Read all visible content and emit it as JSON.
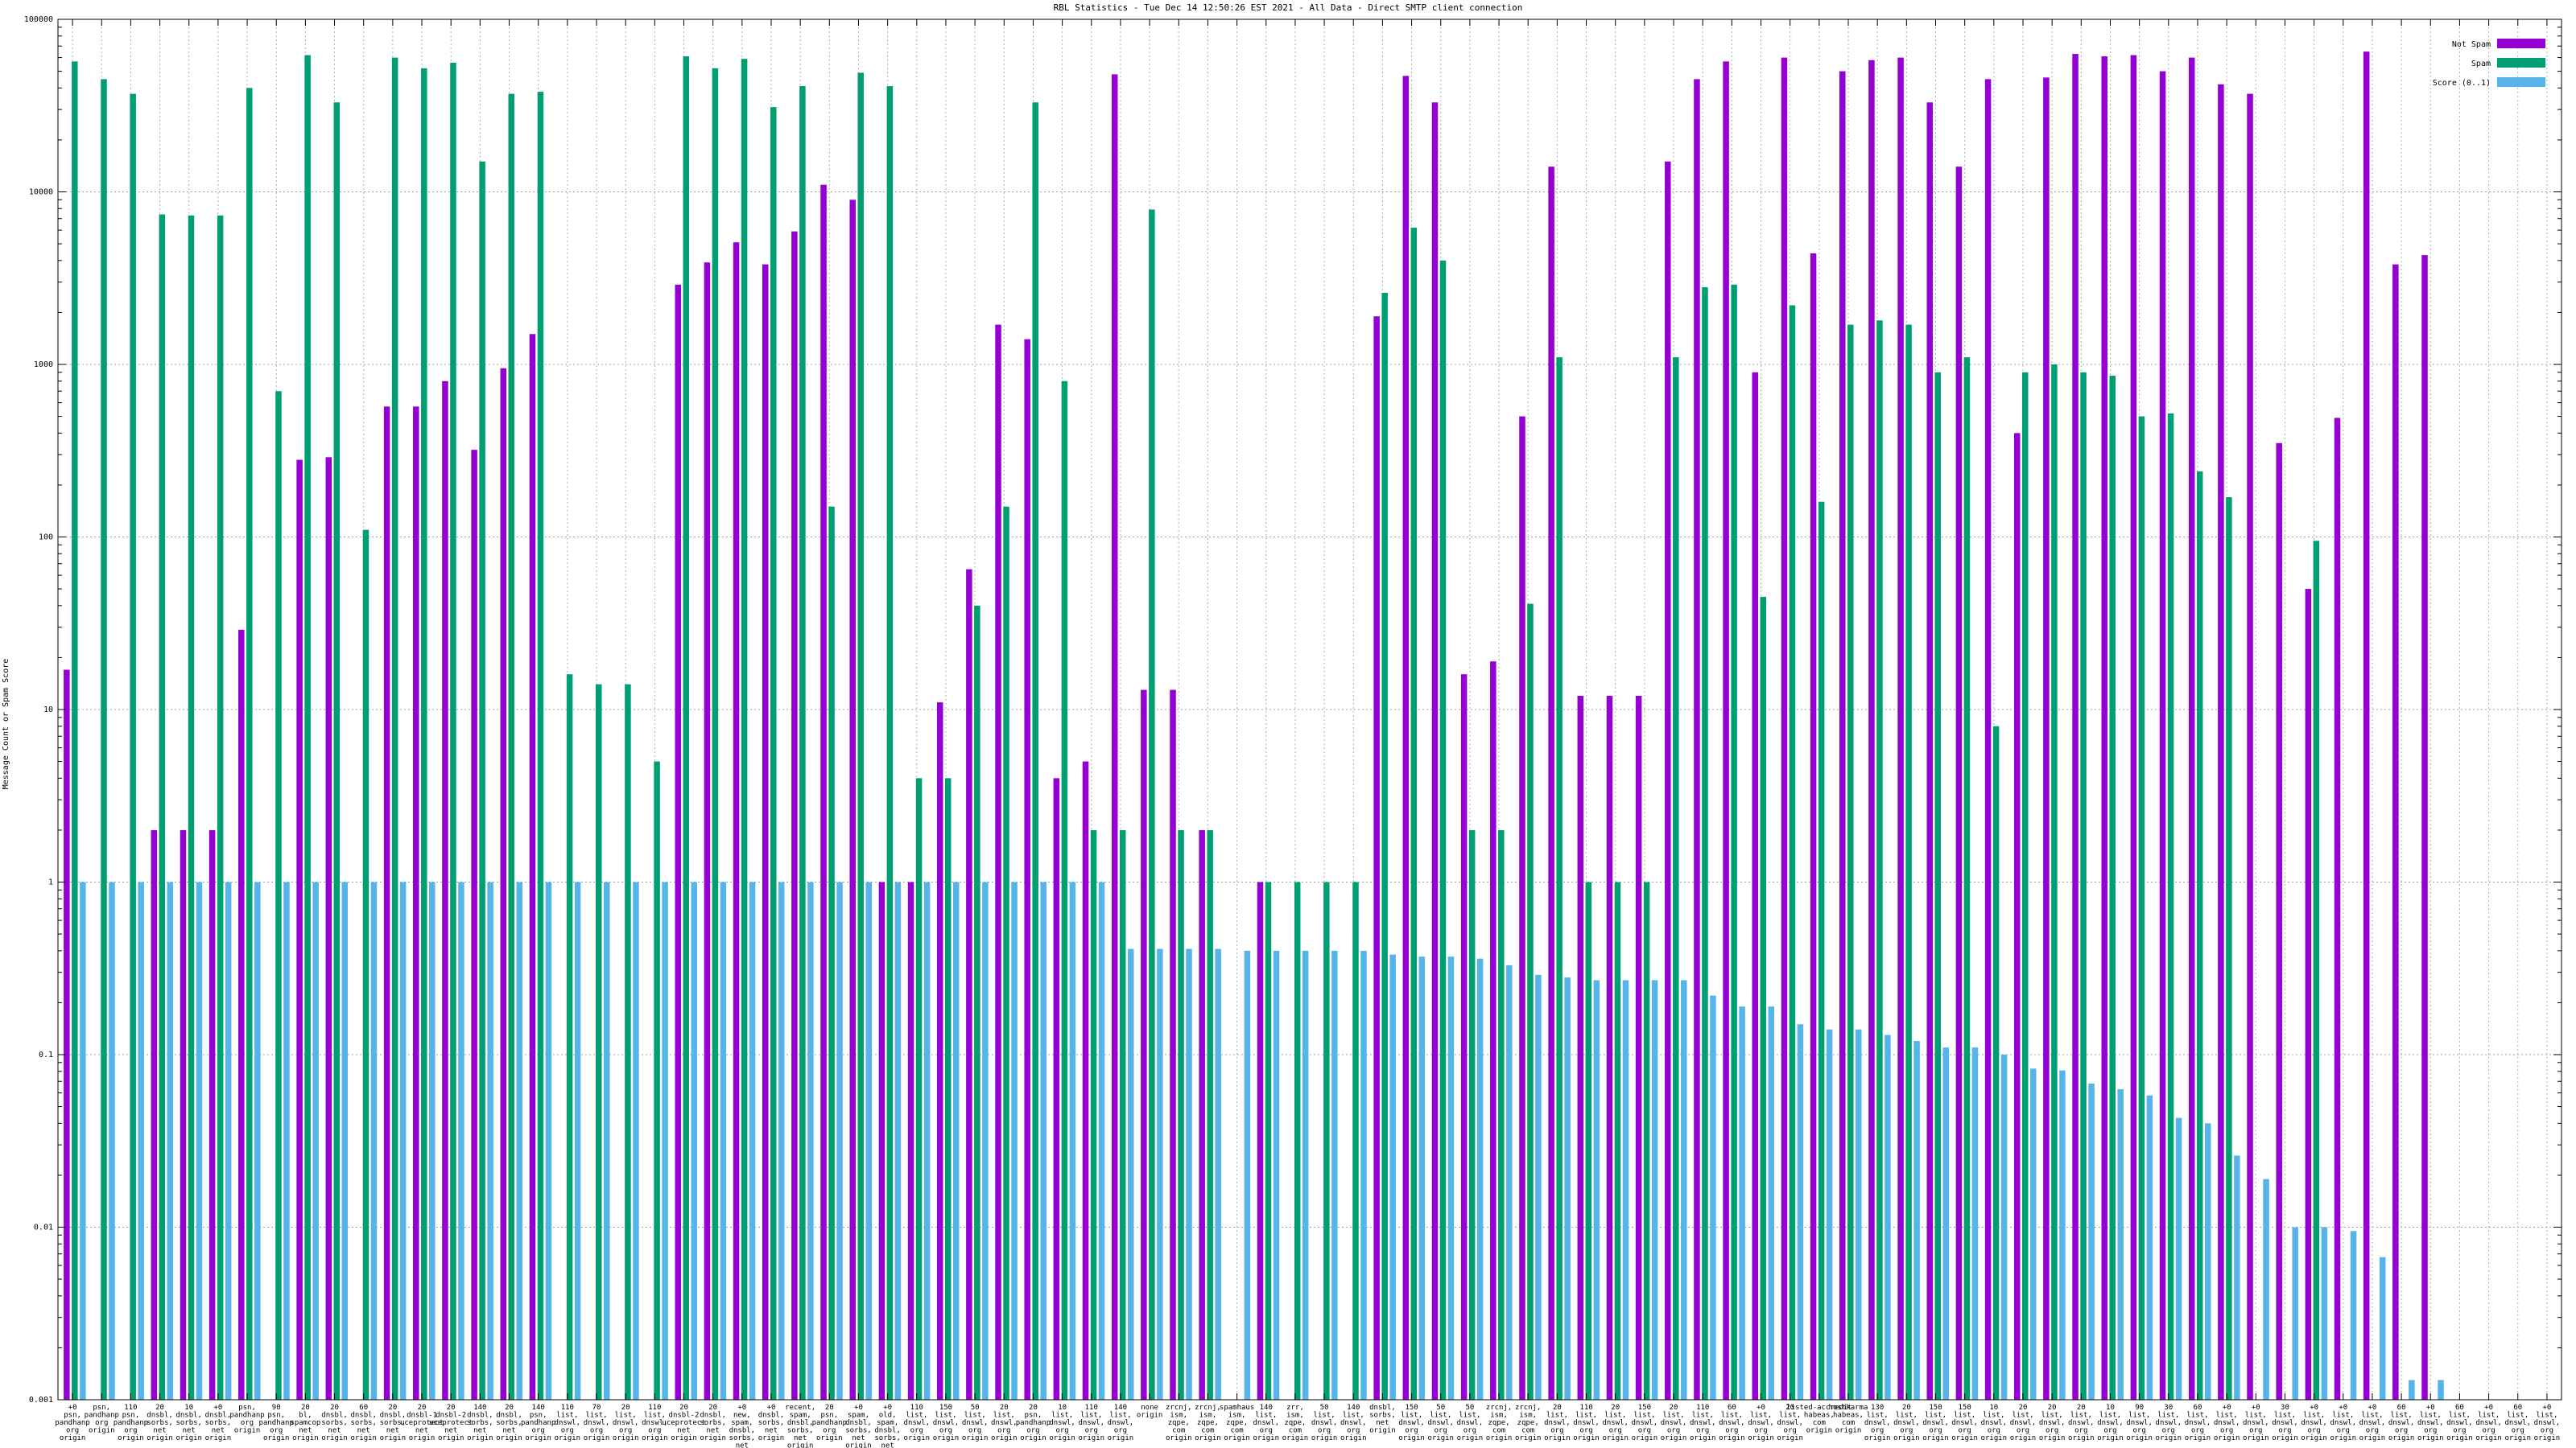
{
  "chart_data": {
    "type": "bar",
    "title": "RBL Statistics - Tue Dec 14 12:50:26 EST 2021 - All Data - Direct SMTP client connection",
    "ylabel": "Message Count or Spam Score",
    "xlabel": "",
    "yscale": "log",
    "ylim": [
      0.001,
      100000
    ],
    "yticks": [
      0.001,
      0.01,
      0.1,
      1,
      10,
      100,
      1000,
      10000,
      100000
    ],
    "ytick_labels": [
      "0.001",
      "0.01",
      "0.1",
      "1",
      "10",
      "100",
      "1000",
      "10000",
      "100000"
    ],
    "grid": true,
    "legend_position": "top-right",
    "categories": [
      [
        "+0",
        "psn,",
        "pandhanp",
        "org",
        "origin"
      ],
      [
        "psn,",
        "pandhanp",
        "org",
        "origin"
      ],
      [
        "110",
        "psn,",
        "pandhanp",
        "org",
        "origin"
      ],
      [
        "20",
        "dnsbl,",
        "sorbs,",
        "net",
        "origin"
      ],
      [
        "10",
        "dnsbl,",
        "sorbs,",
        "net",
        "origin"
      ],
      [
        "+0",
        "dnsbl,",
        "sorbs,",
        "net",
        "origin"
      ],
      [
        "psn,",
        "pandhanp",
        "org",
        "origin"
      ],
      [
        "90",
        "psn,",
        "pandhanp",
        "org",
        "origin"
      ],
      [
        "20",
        "bl,",
        "spamcop",
        "net",
        "origin"
      ],
      [
        "20",
        "dnsbl,",
        "sorbs,",
        "net",
        "origin"
      ],
      [
        "60",
        "dnsbl,",
        "sorbs,",
        "net",
        "origin"
      ],
      [
        "20",
        "dnsbl,",
        "sorbs,",
        "net",
        "origin"
      ],
      [
        "20",
        "dnsbl-1",
        "uceprotect",
        "net",
        "origin"
      ],
      [
        "20",
        "dnsbl-2",
        "uceprotect",
        "net",
        "origin"
      ],
      [
        "140",
        "dnsbl,",
        "sorbs,",
        "net",
        "origin"
      ],
      [
        "20",
        "dnsbl,",
        "sorbs,",
        "net",
        "origin"
      ],
      [
        "140",
        "psn,",
        "pandhanp",
        "org",
        "origin"
      ],
      [
        "110",
        "list,",
        "dnswl,",
        "org",
        "origin"
      ],
      [
        "70",
        "list,",
        "dnswl,",
        "org",
        "origin"
      ],
      [
        "20",
        "list,",
        "dnswl,",
        "org",
        "origin"
      ],
      [
        "110",
        "list,",
        "dnswl,",
        "org",
        "origin"
      ],
      [
        "20",
        "dnsbl-2",
        "uceprotect",
        "net",
        "origin"
      ],
      [
        "20",
        "dnsbl,",
        "sorbs,",
        "net",
        "origin"
      ],
      [
        "+0",
        "new,",
        "spam,",
        "dnsbl,",
        "sorbs,",
        "net",
        "origin"
      ],
      [
        "+0",
        "dnsbl,",
        "sorbs,",
        "net",
        "origin"
      ],
      [
        "recent,",
        "spam,",
        "dnsbl,",
        "sorbs,",
        "net",
        "origin"
      ],
      [
        "20",
        "psn,",
        "pandhanp",
        "org",
        "origin"
      ],
      [
        "+0",
        "spam,",
        "dnsbl,",
        "sorbs,",
        "net",
        "origin"
      ],
      [
        "+0",
        "old,",
        "spam,",
        "dnsbl,",
        "sorbs,",
        "net",
        "origin"
      ],
      [
        "110",
        "list,",
        "dnswl,",
        "org",
        "origin"
      ],
      [
        "150",
        "list,",
        "dnswl,",
        "org",
        "origin"
      ],
      [
        "50",
        "list,",
        "dnswl,",
        "org",
        "origin"
      ],
      [
        "20",
        "list,",
        "dnswl,",
        "org",
        "origin"
      ],
      [
        "20",
        "psn,",
        "pandhanp",
        "org",
        "origin"
      ],
      [
        "10",
        "list,",
        "dnswl,",
        "org",
        "origin"
      ],
      [
        "110",
        "list,",
        "dnswl,",
        "org",
        "origin"
      ],
      [
        "140",
        "list,",
        "dnswl,",
        "org",
        "origin"
      ],
      [
        "none",
        "origin"
      ],
      [
        "zrcnj,",
        "ism,",
        "zqpe,",
        "com",
        "origin"
      ],
      [
        "zrcnj,",
        "ism,",
        "zqpe,",
        "com",
        "origin"
      ],
      [
        "spamhaus",
        "ism,",
        "zqpe,",
        "com",
        "origin"
      ],
      [
        "140",
        "list,",
        "dnswl,",
        "org",
        "origin"
      ],
      [
        "zrr,",
        "ism,",
        "zqpe,",
        "com",
        "origin"
      ],
      [
        "50",
        "list,",
        "dnswl,",
        "org",
        "origin"
      ],
      [
        "140",
        "list,",
        "dnswl,",
        "org",
        "origin"
      ],
      [
        "dnsbl,",
        "sorbs,",
        "net",
        "origin"
      ],
      [
        "150",
        "list,",
        "dnswl,",
        "org",
        "origin"
      ],
      [
        "50",
        "list,",
        "dnswl,",
        "org",
        "origin"
      ],
      [
        "50",
        "list,",
        "dnswl,",
        "org",
        "origin"
      ],
      [
        "zrcnj,",
        "ism,",
        "zqpe,",
        "com",
        "origin"
      ],
      [
        "zrcnj,",
        "ism,",
        "zqpe,",
        "com",
        "origin"
      ],
      [
        "20",
        "list,",
        "dnswl,",
        "org",
        "origin"
      ],
      [
        "110",
        "list,",
        "dnswl,",
        "org",
        "origin"
      ],
      [
        "20",
        "list,",
        "dnswl,",
        "org",
        "origin"
      ],
      [
        "150",
        "list,",
        "dnswl,",
        "org",
        "origin"
      ],
      [
        "20",
        "list,",
        "dnswl,",
        "org",
        "origin"
      ],
      [
        "110",
        "list,",
        "dnswl,",
        "org",
        "origin"
      ],
      [
        "60",
        "list,",
        "dnswl,",
        "org",
        "origin"
      ],
      [
        "+0",
        "list,",
        "dnswl,",
        "org",
        "origin"
      ],
      [
        "20",
        "list,",
        "dnswl,",
        "org",
        "origin"
      ],
      [
        "listed-accredit",
        "habeas,",
        "com",
        "origin"
      ],
      [
        "hostkarma",
        "habeas,",
        "com",
        "origin"
      ],
      [
        "130",
        "list,",
        "dnswl,",
        "org",
        "origin"
      ],
      [
        "20",
        "list,",
        "dnswl,",
        "org",
        "origin"
      ],
      [
        "150",
        "list,",
        "dnswl,",
        "org",
        "origin"
      ],
      [
        "150",
        "list,",
        "dnswl,",
        "org",
        "origin"
      ],
      [
        "10",
        "list,",
        "dnswl,",
        "org",
        "origin"
      ],
      [
        "20",
        "list,",
        "dnswl,",
        "org",
        "origin"
      ],
      [
        "20",
        "list,",
        "dnswl,",
        "org",
        "origin"
      ],
      [
        "20",
        "list,",
        "dnswl,",
        "org",
        "origin"
      ],
      [
        "10",
        "list,",
        "dnswl,",
        "org",
        "origin"
      ],
      [
        "90",
        "list,",
        "dnswl,",
        "org",
        "origin"
      ],
      [
        "30",
        "list,",
        "dnswl,",
        "org",
        "origin"
      ],
      [
        "60",
        "list,",
        "dnswl,",
        "org",
        "origin"
      ],
      [
        "+0",
        "list,",
        "dnswl,",
        "org",
        "origin"
      ],
      [
        "+0",
        "list,",
        "dnswl,",
        "org",
        "origin"
      ],
      [
        "30",
        "list,",
        "dnswl,",
        "org",
        "origin"
      ],
      [
        "+0",
        "list,",
        "dnswl,",
        "org",
        "origin"
      ],
      [
        "+0",
        "list,",
        "dnswl,",
        "org",
        "origin"
      ],
      [
        "+0",
        "list,",
        "dnswl,",
        "org",
        "origin"
      ],
      [
        "60",
        "list,",
        "dnswl,",
        "org",
        "origin"
      ],
      [
        "+0",
        "list,",
        "dnswl,",
        "org",
        "origin"
      ],
      [
        "60",
        "list,",
        "dnswl,",
        "org",
        "origin"
      ],
      [
        "+0",
        "list,",
        "dnswl,",
        "org",
        "origin"
      ],
      [
        "60",
        "list,",
        "dnswl,",
        "org",
        "origin"
      ],
      [
        "+0",
        "list,",
        "dnswl,",
        "org",
        "origin"
      ]
    ],
    "series": [
      {
        "name": "Not Spam",
        "color": "#9400d3",
        "values": [
          17,
          null,
          null,
          2,
          2,
          2,
          29,
          null,
          280,
          290,
          null,
          570,
          570,
          800,
          320,
          950,
          1500,
          null,
          null,
          null,
          null,
          2900,
          3900,
          5100,
          3800,
          5900,
          11000,
          9000,
          1,
          1,
          11,
          65,
          1700,
          1400,
          4,
          5,
          48000,
          13,
          13,
          2,
          null,
          1,
          null,
          null,
          null,
          1900,
          47000,
          33000,
          16,
          19,
          500,
          14000,
          12,
          12,
          12,
          15000,
          45000,
          57000,
          900,
          60000,
          4400,
          50000,
          58000,
          60000,
          33000,
          14000,
          45000,
          400,
          46000,
          63000,
          61000,
          62000,
          50000,
          60000,
          42000,
          37000,
          350,
          50,
          490,
          65000,
          3800,
          4300,
          null,
          null,
          null,
          null
        ]
      },
      {
        "name": "Spam",
        "color": "#009e73",
        "values": [
          57000,
          45000,
          37000,
          7400,
          7300,
          7300,
          40000,
          700,
          62000,
          33000,
          110,
          60000,
          52000,
          56000,
          15000,
          37000,
          38000,
          16,
          14,
          14,
          5,
          61000,
          52000,
          59000,
          31000,
          41000,
          150,
          49000,
          41000,
          4,
          4,
          40,
          150,
          33000,
          800,
          2,
          2,
          7900,
          2,
          2,
          null,
          1,
          1,
          1,
          1,
          2600,
          6200,
          4000,
          2,
          2,
          41,
          1100,
          1,
          1,
          1,
          1100,
          2800,
          2900,
          45,
          2200,
          160,
          1700,
          1800,
          1700,
          900,
          1100,
          8,
          900,
          1000,
          900,
          860,
          500,
          520,
          240,
          170,
          null,
          null,
          95,
          null,
          null,
          null,
          null,
          null,
          null,
          null,
          null
        ]
      },
      {
        "name": "Score (0..1)",
        "color": "#56b4e9",
        "values": [
          1,
          1,
          1,
          1,
          1,
          1,
          1,
          1,
          1,
          1,
          1,
          1,
          1,
          1,
          1,
          1,
          1,
          1,
          1,
          1,
          1,
          1,
          1,
          1,
          1,
          1,
          1,
          1,
          1,
          1,
          1,
          1,
          1,
          1,
          1,
          1,
          0.41,
          0.41,
          0.41,
          0.41,
          0.4,
          0.4,
          0.4,
          0.4,
          0.4,
          0.38,
          0.37,
          0.37,
          0.36,
          0.33,
          0.29,
          0.28,
          0.27,
          0.27,
          0.27,
          0.27,
          0.22,
          0.19,
          0.19,
          0.15,
          0.14,
          0.14,
          0.13,
          0.12,
          0.11,
          0.11,
          0.1,
          0.083,
          0.081,
          0.068,
          0.063,
          0.058,
          0.043,
          0.04,
          0.026,
          0.019,
          0.01,
          0.01,
          0.0095,
          0.0067,
          0.0013,
          0.0013,
          null,
          null,
          null,
          null
        ]
      }
    ]
  }
}
